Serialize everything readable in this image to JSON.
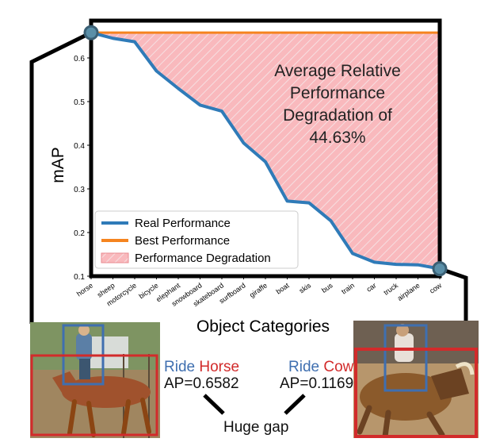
{
  "chart_data": {
    "type": "line",
    "xlabel": "Object Categories",
    "ylabel": "mAP",
    "ylim": [
      0.1,
      0.66
    ],
    "yticks": [
      0.1,
      0.2,
      0.3,
      0.4,
      0.5,
      0.6
    ],
    "categories": [
      "horse",
      "sheep",
      "motorcycle",
      "bicycle",
      "elephant",
      "snowboard",
      "skateboard",
      "surfboard",
      "giraffe",
      "boat",
      "skis",
      "bus",
      "train",
      "car",
      "truck",
      "airplane",
      "cow"
    ],
    "series": [
      {
        "name": "Real Performance",
        "color": "#2f7bb8",
        "values": [
          0.658,
          0.645,
          0.637,
          0.57,
          0.53,
          0.492,
          0.478,
          0.405,
          0.362,
          0.272,
          0.268,
          0.227,
          0.152,
          0.132,
          0.127,
          0.126,
          0.117
        ]
      },
      {
        "name": "Best Performance",
        "color": "#f5841f",
        "values": [
          0.658,
          0.658,
          0.658,
          0.658,
          0.658,
          0.658,
          0.658,
          0.658,
          0.658,
          0.658,
          0.658,
          0.658,
          0.658,
          0.658,
          0.658,
          0.658,
          0.658
        ]
      }
    ],
    "fill_legend": "Performance Degradation",
    "fill_color": "#f9b9bd",
    "annotation": [
      "Average Relative",
      "Performance",
      "Degradation of",
      "44.63%"
    ],
    "legend_position": "lower-left",
    "grid": false
  },
  "labels": {
    "left_ride": "Ride",
    "left_object": "Horse",
    "left_ap": "AP=0.6582",
    "right_ride": "Ride",
    "right_object": "Cow",
    "right_ap": "AP=0.1169",
    "gap": "Huge gap"
  },
  "colors": {
    "subject_box": "#3f6fb0",
    "object_box": "#d22b2b"
  }
}
